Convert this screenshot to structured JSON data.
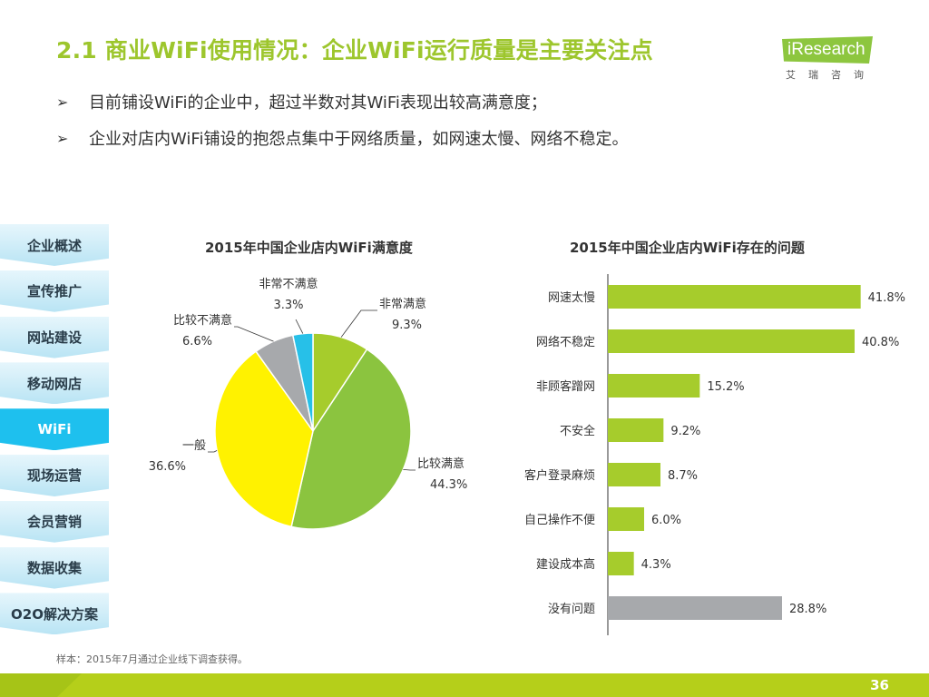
{
  "header": {
    "title": "2.1 商业WiFi使用情况：企业WiFi运行质量是主要关注点",
    "logo_text": "iResearch",
    "logo_sub": "艾瑞咨询"
  },
  "bullets": [
    "目前铺设WiFi的企业中，超过半数对其WiFi表现出较高满意度；",
    "企业对店内WiFi铺设的抱怨点集中于网络质量，如网速太慢、网络不稳定。"
  ],
  "bullet_symbol": "➢",
  "side_nav": {
    "items": [
      "企业概述",
      "宣传推广",
      "网站建设",
      "移动网店",
      "WiFi",
      "现场运营",
      "会员营销",
      "数据收集",
      "O2O解决方案"
    ],
    "active": "WiFi"
  },
  "chart_data": [
    {
      "type": "pie",
      "title": "2015年中国企业店内WiFi满意度",
      "categories": [
        "非常满意",
        "比较满意",
        "一般",
        "比较不满意",
        "非常不满意"
      ],
      "values": [
        9.3,
        44.3,
        36.6,
        6.6,
        3.3
      ],
      "value_labels": [
        "9.3%",
        "44.3%",
        "36.6%",
        "6.6%",
        "3.3%"
      ],
      "colors": [
        "#a6cc2c",
        "#8bc43f",
        "#fff200",
        "#a7a9ac",
        "#27c0e8"
      ]
    },
    {
      "type": "bar",
      "orientation": "horizontal",
      "title": "2015年中国企业店内WiFi存在的问题",
      "categories": [
        "网速太慢",
        "网络不稳定",
        "非顾客蹭网",
        "不安全",
        "客户登录麻烦",
        "自己操作不便",
        "建设成本高",
        "没有问题"
      ],
      "values": [
        41.8,
        40.8,
        15.2,
        9.2,
        8.7,
        6.0,
        4.3,
        28.8
      ],
      "value_labels": [
        "41.8%",
        "40.8%",
        "15.2%",
        "9.2%",
        "8.7%",
        "6.0%",
        "4.3%",
        "28.8%"
      ],
      "colors": [
        "#a6cc2c",
        "#a6cc2c",
        "#a6cc2c",
        "#a6cc2c",
        "#a6cc2c",
        "#a6cc2c",
        "#a6cc2c",
        "#a7a9ac"
      ],
      "xlim": [
        0,
        45
      ]
    }
  ],
  "footnote": "样本：2015年7月通过企业线下调查获得。",
  "page_number": "36"
}
